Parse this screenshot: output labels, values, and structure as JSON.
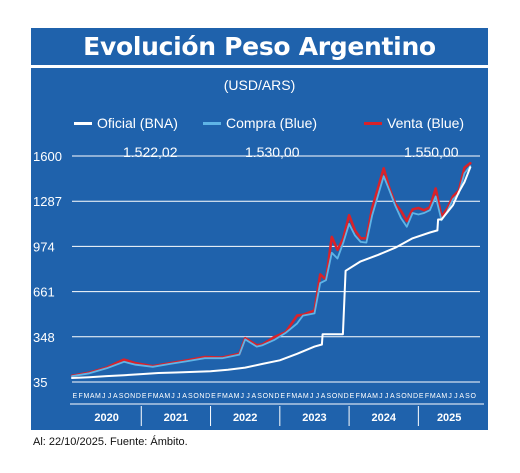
{
  "header": {
    "title": "Evolución Peso Argentino",
    "subtitle": "(USD/ARS)"
  },
  "legend": [
    {
      "label": "Oficial (BNA)",
      "color": "#ffffff"
    },
    {
      "label": "Compra (Blue)",
      "color": "#5fb4e6"
    },
    {
      "label": "Venta (Blue)",
      "color": "#d8222a"
    }
  ],
  "last_values": {
    "oficial": "1.522,02",
    "compra": "1.530,00",
    "venta": "1.550,00"
  },
  "footer": {
    "source": "Al: 22/10/2025. Fuente: Ámbito."
  },
  "colors": {
    "background": "#1f62ac",
    "oficial": "#ffffff",
    "compra": "#5fb4e6",
    "venta": "#d8222a"
  },
  "chart_data": {
    "type": "line",
    "title": "Evolución Peso Argentino",
    "subtitle": "(USD/ARS)",
    "ylim": [
      35,
      1600
    ],
    "y_ticks": [
      35,
      348,
      661,
      974,
      1287,
      1600
    ],
    "month_labels": [
      "E",
      "F",
      "M",
      "A",
      "M",
      "J",
      "J",
      "A",
      "S",
      "O",
      "N",
      "D"
    ],
    "year_labels": [
      "2020",
      "2021",
      "2022",
      "2023",
      "2024",
      "2025"
    ],
    "x_range": [
      "2020-01",
      "2025-10"
    ],
    "grid": true,
    "legend_position": "top",
    "series": [
      {
        "name": "Oficial (BNA)",
        "points": [
          [
            "2020-01",
            63
          ],
          [
            "2020-04",
            68
          ],
          [
            "2020-07",
            76
          ],
          [
            "2020-10",
            82
          ],
          [
            "2021-01",
            90
          ],
          [
            "2021-04",
            97
          ],
          [
            "2021-07",
            101
          ],
          [
            "2021-10",
            105
          ],
          [
            "2022-01",
            110
          ],
          [
            "2022-04",
            120
          ],
          [
            "2022-07",
            135
          ],
          [
            "2022-10",
            160
          ],
          [
            "2023-01",
            185
          ],
          [
            "2023-04",
            230
          ],
          [
            "2023-07",
            280
          ],
          [
            "2023-08-10",
            295
          ],
          [
            "2023-08-14",
            365
          ],
          [
            "2023-11-30",
            366
          ],
          [
            "2023-12-13",
            805
          ],
          [
            "2024-03",
            870
          ],
          [
            "2024-06",
            915
          ],
          [
            "2024-09",
            965
          ],
          [
            "2024-12",
            1030
          ],
          [
            "2025-03",
            1070
          ],
          [
            "2025-04-10",
            1085
          ],
          [
            "2025-04-14",
            1160
          ],
          [
            "2025-05",
            1160
          ],
          [
            "2025-07",
            1260
          ],
          [
            "2025-08",
            1350
          ],
          [
            "2025-09",
            1420
          ],
          [
            "2025-10",
            1522
          ]
        ]
      },
      {
        "name": "Compra (Blue)",
        "points": [
          [
            "2020-01",
            75
          ],
          [
            "2020-04",
            95
          ],
          [
            "2020-07",
            130
          ],
          [
            "2020-10",
            175
          ],
          [
            "2020-12",
            155
          ],
          [
            "2021-03",
            140
          ],
          [
            "2021-06",
            160
          ],
          [
            "2021-09",
            180
          ],
          [
            "2021-12",
            200
          ],
          [
            "2022-03",
            200
          ],
          [
            "2022-06",
            225
          ],
          [
            "2022-07",
            330
          ],
          [
            "2022-09",
            280
          ],
          [
            "2022-10",
            290
          ],
          [
            "2022-12",
            325
          ],
          [
            "2023-02",
            375
          ],
          [
            "2023-04",
            440
          ],
          [
            "2023-05",
            495
          ],
          [
            "2023-07",
            510
          ],
          [
            "2023-08",
            720
          ],
          [
            "2023-09",
            740
          ],
          [
            "2023-10",
            930
          ],
          [
            "2023-11",
            890
          ],
          [
            "2023-12",
            1000
          ],
          [
            "2024-01",
            1130
          ],
          [
            "2024-02",
            1050
          ],
          [
            "2024-03",
            1005
          ],
          [
            "2024-04",
            1000
          ],
          [
            "2024-05",
            1190
          ],
          [
            "2024-07",
            1460
          ],
          [
            "2024-08",
            1360
          ],
          [
            "2024-09",
            1255
          ],
          [
            "2024-10",
            1170
          ],
          [
            "2024-11",
            1110
          ],
          [
            "2024-12",
            1205
          ],
          [
            "2025-01",
            1195
          ],
          [
            "2025-02",
            1205
          ],
          [
            "2025-03",
            1225
          ],
          [
            "2025-04",
            1320
          ],
          [
            "2025-05",
            1155
          ],
          [
            "2025-06",
            1215
          ],
          [
            "2025-07",
            1300
          ],
          [
            "2025-08",
            1340
          ],
          [
            "2025-09",
            1480
          ],
          [
            "2025-10",
            1530
          ]
        ]
      },
      {
        "name": "Venta (Blue)",
        "points": [
          [
            "2020-01",
            78
          ],
          [
            "2020-04",
            100
          ],
          [
            "2020-07",
            135
          ],
          [
            "2020-10",
            190
          ],
          [
            "2020-12",
            165
          ],
          [
            "2021-03",
            145
          ],
          [
            "2021-06",
            165
          ],
          [
            "2021-09",
            185
          ],
          [
            "2021-12",
            208
          ],
          [
            "2022-03",
            205
          ],
          [
            "2022-06",
            230
          ],
          [
            "2022-07",
            338
          ],
          [
            "2022-09",
            290
          ],
          [
            "2022-10",
            295
          ],
          [
            "2022-12",
            345
          ],
          [
            "2023-02",
            380
          ],
          [
            "2023-04",
            495
          ],
          [
            "2023-05",
            500
          ],
          [
            "2023-07",
            530
          ],
          [
            "2023-08",
            780
          ],
          [
            "2023-09",
            745
          ],
          [
            "2023-10",
            1040
          ],
          [
            "2023-11",
            950
          ],
          [
            "2023-12",
            1030
          ],
          [
            "2024-01",
            1190
          ],
          [
            "2024-02",
            1085
          ],
          [
            "2024-03",
            1030
          ],
          [
            "2024-04",
            1030
          ],
          [
            "2024-05",
            1240
          ],
          [
            "2024-07",
            1515
          ],
          [
            "2024-08",
            1375
          ],
          [
            "2024-09",
            1270
          ],
          [
            "2024-10",
            1220
          ],
          [
            "2024-11",
            1150
          ],
          [
            "2024-12",
            1230
          ],
          [
            "2025-01",
            1240
          ],
          [
            "2025-02",
            1225
          ],
          [
            "2025-03",
            1245
          ],
          [
            "2025-04",
            1375
          ],
          [
            "2025-05",
            1180
          ],
          [
            "2025-06",
            1235
          ],
          [
            "2025-07",
            1320
          ],
          [
            "2025-08",
            1360
          ],
          [
            "2025-09",
            1520
          ],
          [
            "2025-10",
            1550
          ]
        ]
      }
    ]
  }
}
